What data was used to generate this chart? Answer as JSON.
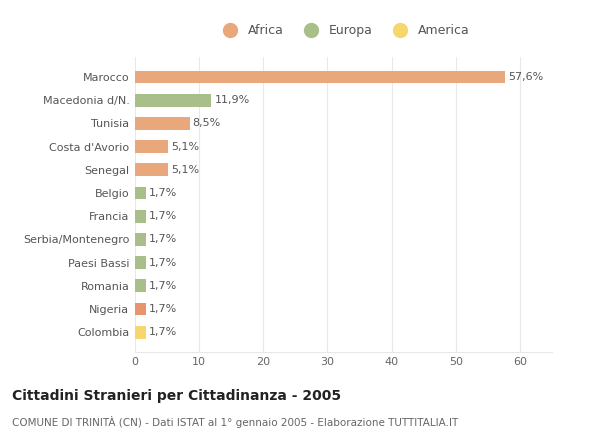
{
  "categories": [
    "Colombia",
    "Nigeria",
    "Romania",
    "Paesi Bassi",
    "Serbia/Montenegro",
    "Francia",
    "Belgio",
    "Senegal",
    "Costa d'Avorio",
    "Tunisia",
    "Macedonia d/N.",
    "Marocco"
  ],
  "values": [
    1.7,
    1.7,
    1.7,
    1.7,
    1.7,
    1.7,
    1.7,
    5.1,
    5.1,
    8.5,
    11.9,
    57.6
  ],
  "labels": [
    "1,7%",
    "1,7%",
    "1,7%",
    "1,7%",
    "1,7%",
    "1,7%",
    "1,7%",
    "5,1%",
    "5,1%",
    "8,5%",
    "11,9%",
    "57,6%"
  ],
  "colors": [
    "#f5d76e",
    "#e8956d",
    "#a8bf8a",
    "#a8bf8a",
    "#a8bf8a",
    "#a8bf8a",
    "#a8bf8a",
    "#e8a87c",
    "#e8a87c",
    "#e8a87c",
    "#a8bf8a",
    "#e8a87c"
  ],
  "continent": [
    "America",
    "Africa",
    "Europa",
    "Europa",
    "Europa",
    "Europa",
    "Europa",
    "Africa",
    "Africa",
    "Africa",
    "Europa",
    "Africa"
  ],
  "africa_color": "#e8a87c",
  "europa_color": "#a8bf8a",
  "america_color": "#f5d76e",
  "background_color": "#ffffff",
  "grid_color": "#e8e8e8",
  "title": "Cittadini Stranieri per Cittadinanza - 2005",
  "subtitle": "COMUNE DI TRINITÀ (CN) - Dati ISTAT al 1° gennaio 2005 - Elaborazione TUTTITALIA.IT",
  "xlim": [
    0,
    65
  ],
  "xticks": [
    0,
    10,
    20,
    30,
    40,
    50,
    60
  ],
  "bar_height": 0.55,
  "label_fontsize": 8,
  "tick_fontsize": 8,
  "title_fontsize": 10,
  "subtitle_fontsize": 7.5,
  "legend_fontsize": 9
}
